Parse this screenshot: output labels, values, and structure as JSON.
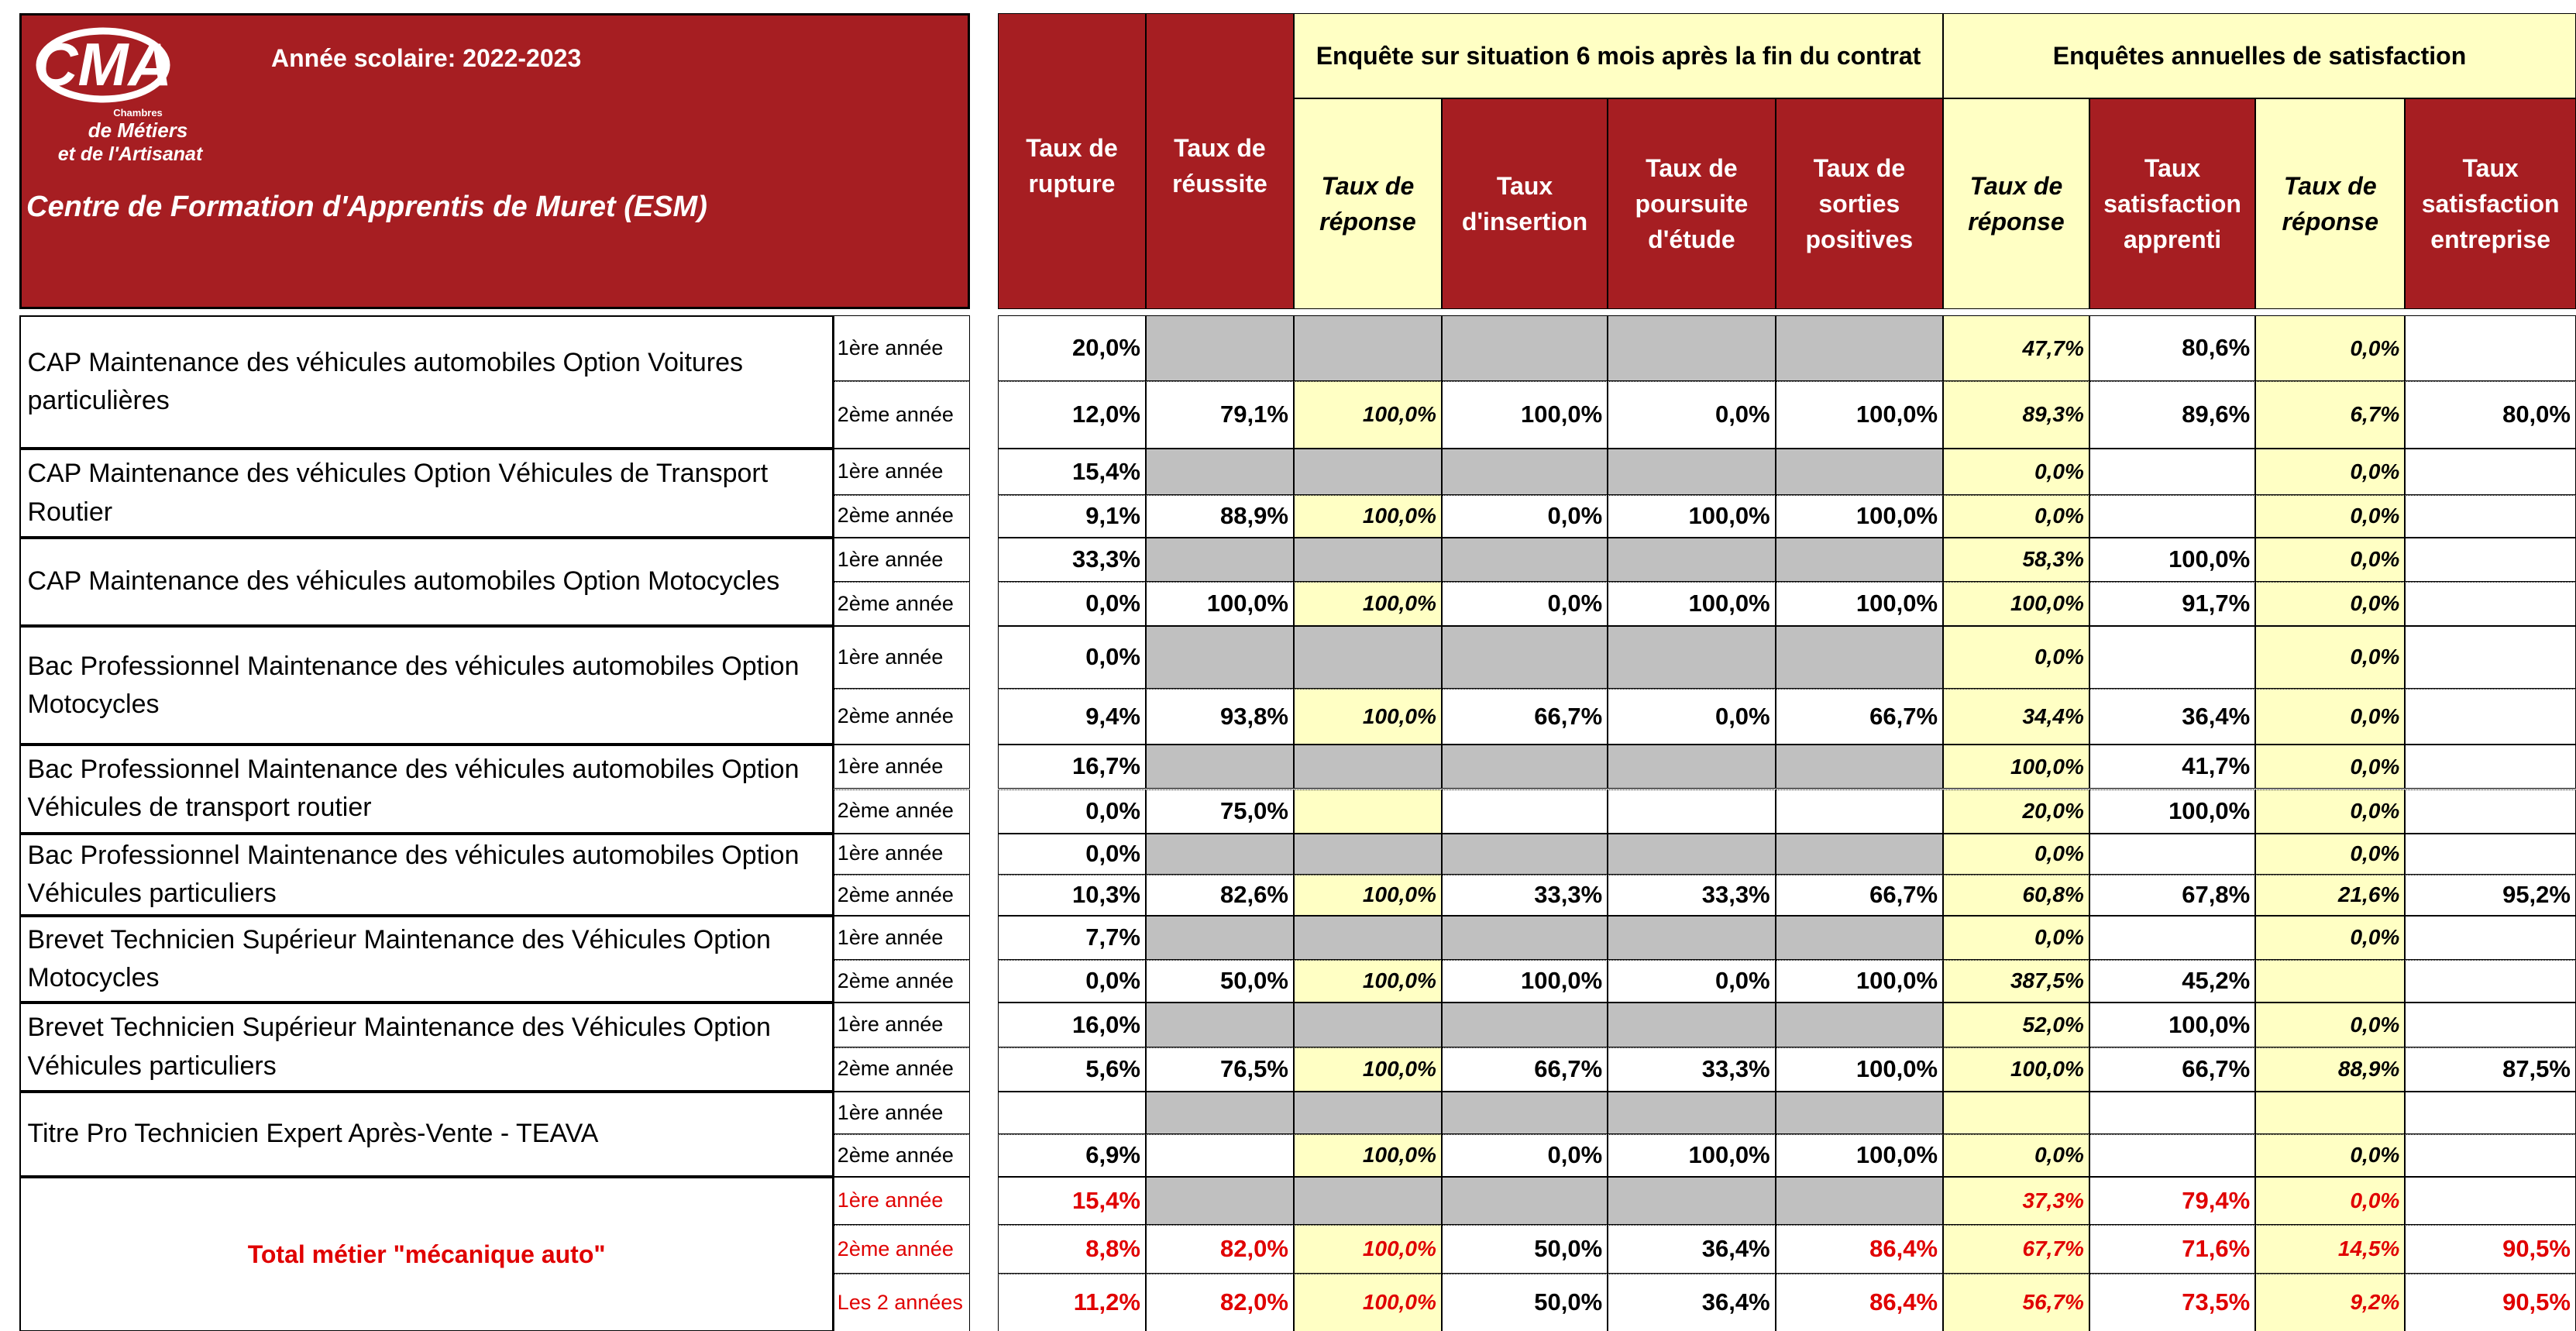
{
  "header": {
    "logo": {
      "mark": "CMA",
      "lines": [
        "Chambres",
        "de Métiers",
        "et de l'Artisanat"
      ]
    },
    "year": "Année scolaire: 2022-2023",
    "centre": "Centre de Formation d'Apprentis de Muret (ESM)"
  },
  "group_headers": [
    "Enquête sur situation 6 mois après la fin du contrat",
    "Enquêtes annuelles  de satisfaction"
  ],
  "columns": [
    "Taux de rupture",
    "Taux de réussite",
    "Taux de réponse",
    "Taux d'insertion",
    "Taux de poursuite d'étude",
    "Taux de sorties positives",
    "Taux de réponse",
    "Taux satisfaction apprenti",
    "Taux de réponse",
    "Taux satisfaction entreprise"
  ],
  "groups": [
    {
      "label": "CAP Maintenance des véhicules automobiles Option Voitures particulières",
      "rows": [
        {
          "year": "1ère année",
          "values": [
            "20,0%",
            null,
            null,
            null,
            null,
            null,
            "47,7%",
            "80,6%",
            "0,0%",
            null
          ]
        },
        {
          "year": "2ème année",
          "values": [
            "12,0%",
            "79,1%",
            "100,0%",
            "100,0%",
            "0,0%",
            "100,0%",
            "89,3%",
            "89,6%",
            "6,7%",
            "80,0%"
          ]
        }
      ]
    },
    {
      "label": "CAP Maintenance des véhicules Option Véhicules de Transport Routier",
      "rows": [
        {
          "year": "1ère année",
          "values": [
            "15,4%",
            null,
            null,
            null,
            null,
            null,
            "0,0%",
            null,
            "0,0%",
            null
          ]
        },
        {
          "year": "2ème année",
          "values": [
            "9,1%",
            "88,9%",
            "100,0%",
            "0,0%",
            "100,0%",
            "100,0%",
            "0,0%",
            null,
            "0,0%",
            null
          ]
        }
      ]
    },
    {
      "label": "CAP Maintenance des véhicules automobiles Option Motocycles",
      "rows": [
        {
          "year": "1ère année",
          "values": [
            "33,3%",
            null,
            null,
            null,
            null,
            null,
            "58,3%",
            "100,0%",
            "0,0%",
            null
          ]
        },
        {
          "year": "2ème année",
          "values": [
            "0,0%",
            "100,0%",
            "100,0%",
            "0,0%",
            "100,0%",
            "100,0%",
            "100,0%",
            "91,7%",
            "0,0%",
            null
          ]
        }
      ]
    },
    {
      "label": "Bac Professionnel  Maintenance des véhicules automobiles Option Motocycles",
      "rows": [
        {
          "year": "1ère année",
          "values": [
            "0,0%",
            null,
            null,
            null,
            null,
            null,
            "0,0%",
            null,
            "0,0%",
            null
          ]
        },
        {
          "year": "2ème année",
          "values": [
            "9,4%",
            "93,8%",
            "100,0%",
            "66,7%",
            "0,0%",
            "66,7%",
            "34,4%",
            "36,4%",
            "0,0%",
            null
          ]
        }
      ]
    },
    {
      "label": "Bac Professionnel  Maintenance des véhicules automobiles Option Véhicules de transport routier",
      "rows": [
        {
          "year": "1ère année",
          "values": [
            "16,7%",
            null,
            null,
            null,
            null,
            null,
            "100,0%",
            "41,7%",
            "0,0%",
            null
          ]
        },
        {
          "year": "2ème année",
          "values": [
            "0,0%",
            "75,0%",
            null,
            null,
            null,
            null,
            "20,0%",
            "100,0%",
            "0,0%",
            null
          ]
        }
      ]
    },
    {
      "label": "Bac Professionnel  Maintenance des véhicules automobiles Option Véhicules particuliers",
      "rows": [
        {
          "year": "1ère année",
          "values": [
            "0,0%",
            null,
            null,
            null,
            null,
            null,
            "0,0%",
            null,
            "0,0%",
            null
          ]
        },
        {
          "year": "2ème année",
          "values": [
            "10,3%",
            "82,6%",
            "100,0%",
            "33,3%",
            "33,3%",
            "66,7%",
            "60,8%",
            "67,8%",
            "21,6%",
            "95,2%"
          ]
        }
      ]
    },
    {
      "label": "Brevet Technicien Supérieur  Maintenance des Véhicules Option Motocycles",
      "rows": [
        {
          "year": "1ère année",
          "values": [
            "7,7%",
            null,
            null,
            null,
            null,
            null,
            "0,0%",
            null,
            "0,0%",
            null
          ]
        },
        {
          "year": "2ème année",
          "values": [
            "0,0%",
            "50,0%",
            "100,0%",
            "100,0%",
            "0,0%",
            "100,0%",
            "387,5%",
            "45,2%",
            null,
            null
          ]
        }
      ]
    },
    {
      "label": "Brevet Technicien Supérieur  Maintenance des Véhicules Option Véhicules particuliers",
      "rows": [
        {
          "year": "1ère année",
          "values": [
            "16,0%",
            null,
            null,
            null,
            null,
            null,
            "52,0%",
            "100,0%",
            "0,0%",
            null
          ]
        },
        {
          "year": "2ème année",
          "values": [
            "5,6%",
            "76,5%",
            "100,0%",
            "66,7%",
            "33,3%",
            "100,0%",
            "100,0%",
            "66,7%",
            "88,9%",
            "87,5%"
          ]
        }
      ]
    },
    {
      "label": "Titre Pro Technicien Expert Après-Vente - TEAVA",
      "rows": [
        {
          "year": "1ère année",
          "values": [
            null,
            null,
            null,
            null,
            null,
            null,
            null,
            null,
            null,
            null
          ]
        },
        {
          "year": "2ème année",
          "values": [
            "6,9%",
            null,
            "100,0%",
            "0,0%",
            "100,0%",
            "100,0%",
            "0,0%",
            null,
            "0,0%",
            null
          ]
        }
      ]
    }
  ],
  "total": {
    "label": "Total métier \"mécanique auto\"",
    "rows": [
      {
        "year": "1ère année",
        "values": [
          "15,4%",
          null,
          null,
          null,
          null,
          null,
          "37,3%",
          "79,4%",
          "0,0%",
          null
        ]
      },
      {
        "year": "2ème année",
        "values": [
          "8,8%",
          "82,0%",
          "100,0%",
          "50,0%",
          "36,4%",
          "86,4%",
          "67,7%",
          "71,6%",
          "14,5%",
          "90,5%"
        ]
      },
      {
        "year": "Les 2 années",
        "values": [
          "11,2%",
          "82,0%",
          "100,0%",
          "50,0%",
          "36,4%",
          "86,4%",
          "56,7%",
          "73,5%",
          "9,2%",
          "90,5%"
        ]
      }
    ]
  }
}
